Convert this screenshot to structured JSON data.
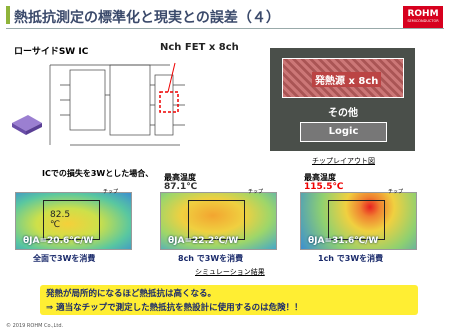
{
  "header": {
    "title": "熱抵抗測定の標準化と現実との誤差（４）",
    "logo": "ROHM",
    "logo_sub": "SEMICONDUCTOR"
  },
  "circuit": {
    "label": "ローサイドSW IC",
    "fet_label": "Nch FET x 8ch"
  },
  "layout": {
    "heat_source": "発熱源 x 8ch",
    "other": "その他",
    "logic": "Logic",
    "caption": "チップレイアウト図"
  },
  "condition": "ICでの損失を3Wとした場合、",
  "simulations": [
    {
      "max_label": null,
      "temp": "82.5 ℃",
      "chip": "チップ",
      "theta": "θJA=20.6℃/W",
      "caption": "全面で3Wを消費"
    },
    {
      "max_label": "最高温度",
      "temp": "87.1℃",
      "chip": "チップ",
      "theta": "θJA=22.2℃/W",
      "caption": "8ch で3Wを消費"
    },
    {
      "max_label": "最高温度",
      "temp": "115.5℃",
      "chip": "チップ",
      "theta": "θJA=31.6℃/W",
      "caption": "1ch で3Wを消費"
    }
  ],
  "simulation_caption": "シミュレーション結果",
  "conclusion": {
    "line1": "発熱が局所的になるほど熱抵抗は高くなる。",
    "line2": "⇒ 適当なチップで測定した熱抵抗を熱設計に使用するのは危険！！"
  },
  "footer": "© 2019 ROHM Co.,Ltd."
}
